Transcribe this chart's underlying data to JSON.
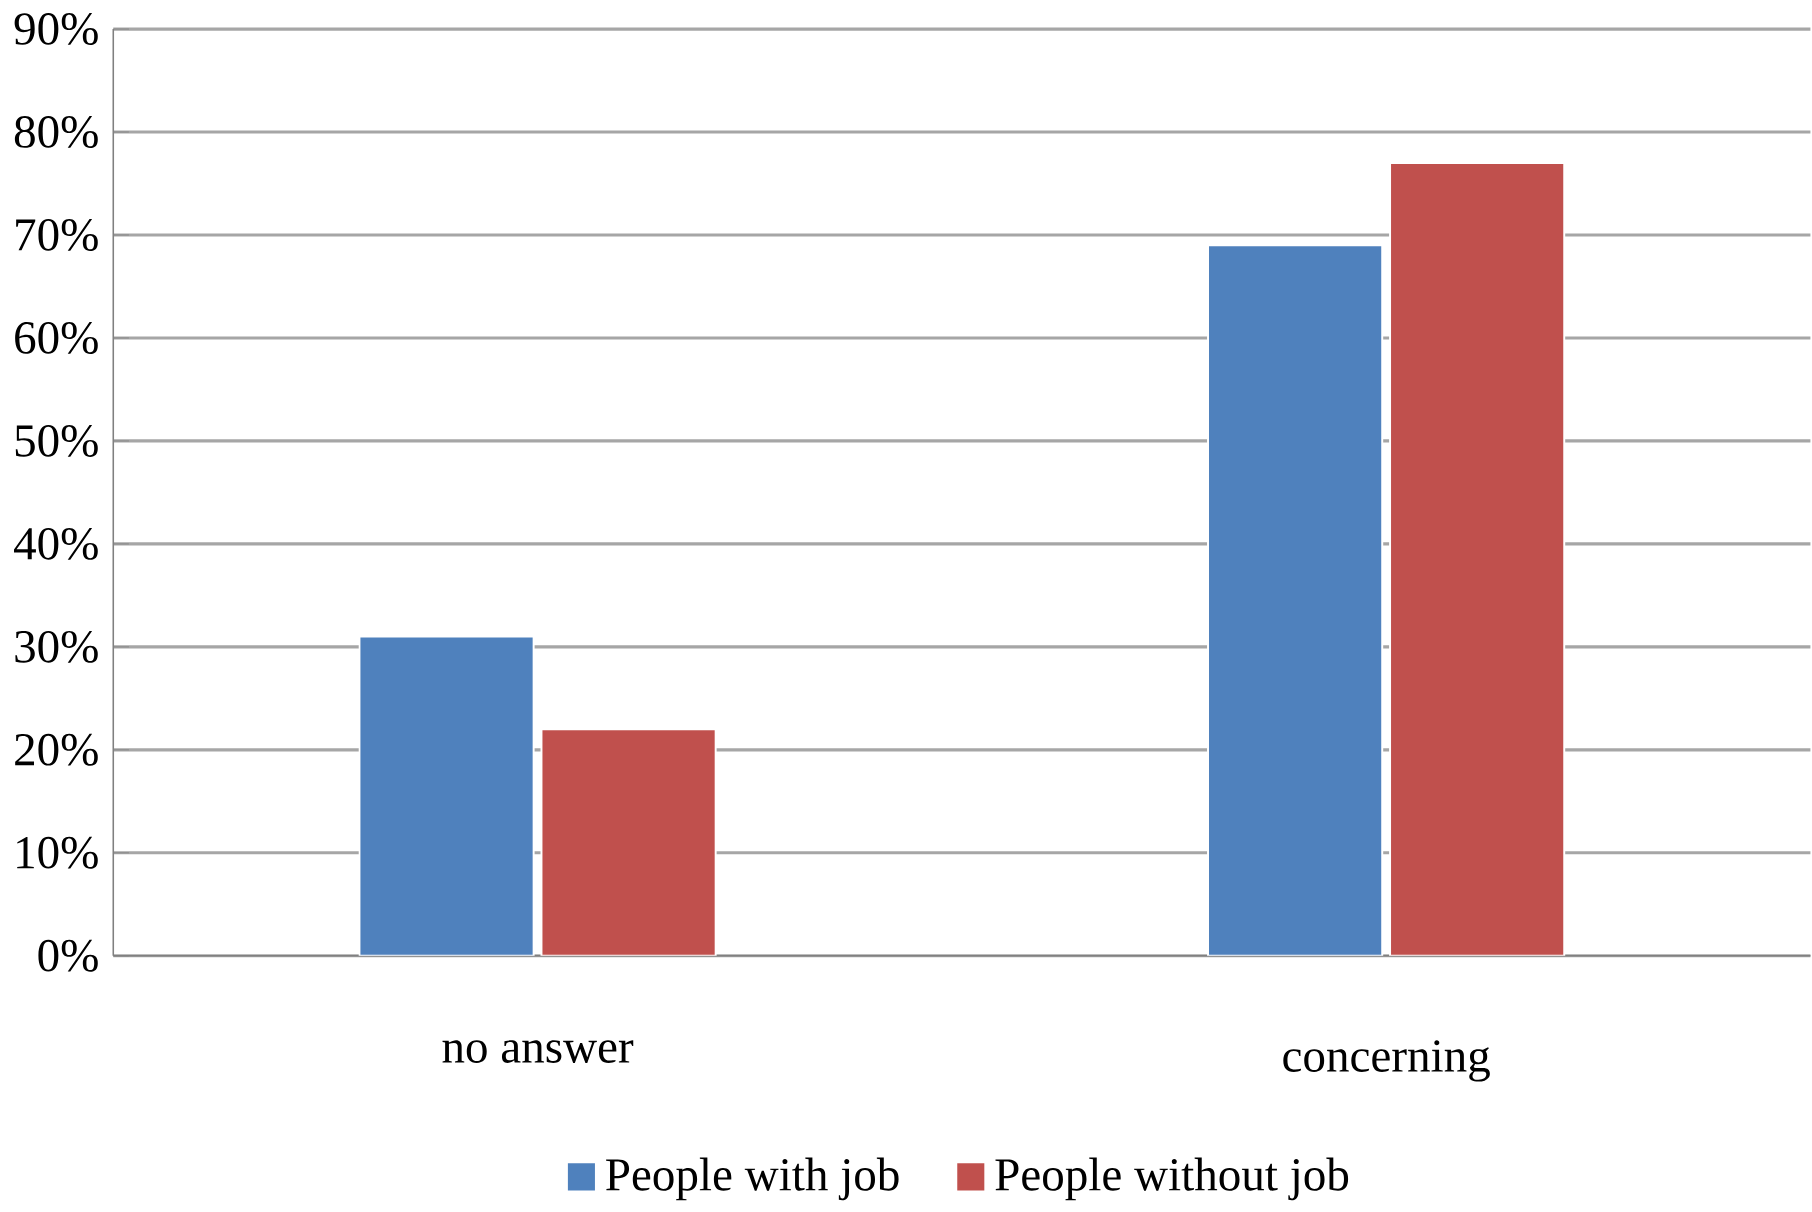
{
  "chart_data": {
    "type": "bar",
    "categories": [
      "no answer",
      "concerning"
    ],
    "series": [
      {
        "name": "People with job",
        "color": "#4f81bd",
        "values": [
          31,
          69
        ]
      },
      {
        "name": "People without job",
        "color": "#c0504d",
        "values": [
          22,
          77
        ]
      }
    ],
    "ylim": [
      0,
      90
    ],
    "yticks": [
      {
        "value": 0,
        "label": "0%"
      },
      {
        "value": 10,
        "label": "10%"
      },
      {
        "value": 20,
        "label": "20%"
      },
      {
        "value": 30,
        "label": "30%"
      },
      {
        "value": 40,
        "label": "40%"
      },
      {
        "value": 50,
        "label": "50%"
      },
      {
        "value": 60,
        "label": "60%"
      },
      {
        "value": 70,
        "label": "70%"
      },
      {
        "value": 80,
        "label": "80%"
      },
      {
        "value": 90,
        "label": "90%"
      }
    ],
    "grid": "y",
    "legend": "bottom"
  }
}
